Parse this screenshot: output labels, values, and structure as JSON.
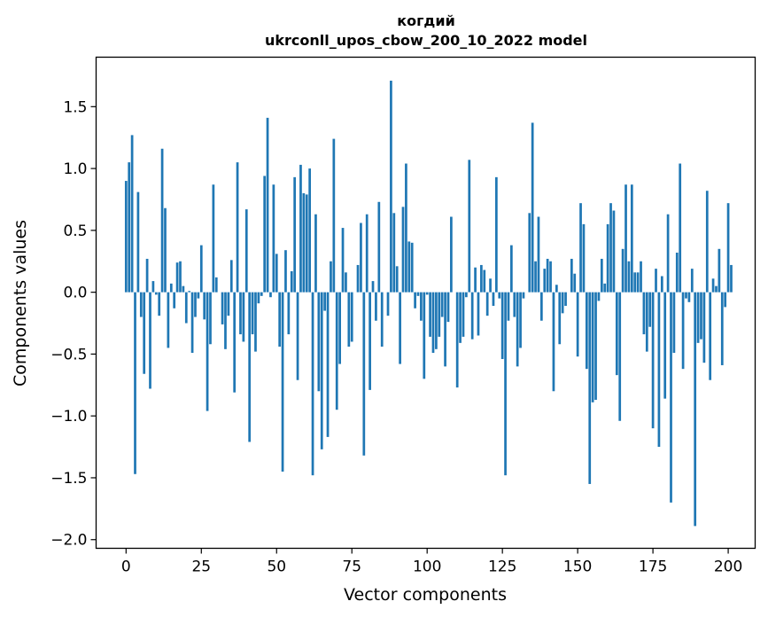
{
  "chart_data": {
    "type": "bar",
    "title_line1": "когдий",
    "title_line2": "ukrconll_upos_cbow_200_10_2022 model",
    "xlabel": "Vector components",
    "ylabel": "Components values",
    "xlim": [
      -9.95,
      208.95
    ],
    "ylim": [
      -2.07,
      1.9
    ],
    "xticks": [
      0,
      25,
      50,
      75,
      100,
      125,
      150,
      175,
      200
    ],
    "yticks": [
      -2.0,
      -1.5,
      -1.0,
      -0.5,
      0.0,
      0.5,
      1.0,
      1.5
    ],
    "ytick_labels": [
      "−2.0",
      "−1.5",
      "−1.0",
      "−0.5",
      "0.0",
      "0.5",
      "1.0",
      "1.5"
    ],
    "bar_color": "#1f77b4",
    "grid": false,
    "legend": "none",
    "values": [
      0.9,
      1.05,
      1.27,
      -1.47,
      0.81,
      -0.2,
      -0.66,
      0.27,
      -0.78,
      0.09,
      -0.02,
      -0.19,
      1.16,
      0.68,
      -0.45,
      0.07,
      -0.13,
      0.24,
      0.25,
      0.05,
      -0.25,
      0.01,
      -0.49,
      -0.2,
      -0.05,
      0.38,
      -0.22,
      -0.96,
      -0.42,
      0.87,
      0.12,
      0.0,
      -0.26,
      -0.46,
      -0.19,
      0.26,
      -0.81,
      1.05,
      -0.34,
      -0.4,
      0.67,
      -1.21,
      -0.34,
      -0.48,
      -0.09,
      -0.03,
      0.94,
      1.41,
      -0.04,
      0.87,
      0.31,
      -0.44,
      -1.45,
      0.34,
      -0.34,
      0.17,
      0.93,
      -0.71,
      1.03,
      0.8,
      0.79,
      1.0,
      -1.48,
      0.63,
      -0.8,
      -1.27,
      -0.15,
      -1.17,
      0.25,
      1.24,
      -0.95,
      -0.58,
      0.52,
      0.16,
      -0.44,
      -0.4,
      0.0,
      0.22,
      0.56,
      -1.32,
      0.63,
      -0.79,
      0.09,
      -0.23,
      0.73,
      -0.44,
      0.0,
      -0.19,
      1.71,
      0.64,
      0.21,
      -0.58,
      0.69,
      1.04,
      0.41,
      0.4,
      -0.13,
      -0.03,
      -0.23,
      -0.7,
      -0.02,
      -0.36,
      -0.49,
      -0.46,
      -0.36,
      -0.2,
      -0.6,
      -0.24,
      0.61,
      0.0,
      -0.77,
      -0.41,
      -0.36,
      -0.04,
      1.07,
      -0.38,
      0.2,
      -0.35,
      0.22,
      0.18,
      -0.19,
      0.11,
      -0.11,
      0.93,
      -0.05,
      -0.54,
      -1.48,
      -0.23,
      0.38,
      -0.2,
      -0.6,
      -0.45,
      -0.05,
      0.0,
      0.64,
      1.37,
      0.25,
      0.61,
      -0.23,
      0.19,
      0.27,
      0.25,
      -0.8,
      0.06,
      -0.42,
      -0.17,
      -0.11,
      0.0,
      0.27,
      0.15,
      -0.52,
      0.72,
      0.55,
      -0.62,
      -1.55,
      -0.89,
      -0.87,
      -0.07,
      0.27,
      0.07,
      0.55,
      0.72,
      0.66,
      -0.67,
      -1.04,
      0.35,
      0.87,
      0.25,
      0.87,
      0.16,
      0.16,
      0.25,
      -0.34,
      -0.48,
      -0.28,
      -1.1,
      0.19,
      -1.25,
      0.13,
      -0.86,
      0.63,
      -1.7,
      -0.49,
      0.32,
      1.04,
      -0.62,
      -0.05,
      -0.08,
      0.19,
      -1.89,
      -0.41,
      -0.38,
      -0.57,
      0.82,
      -0.71,
      0.11,
      0.05,
      0.35,
      -0.59,
      -0.12,
      0.72,
      0.22
    ]
  }
}
